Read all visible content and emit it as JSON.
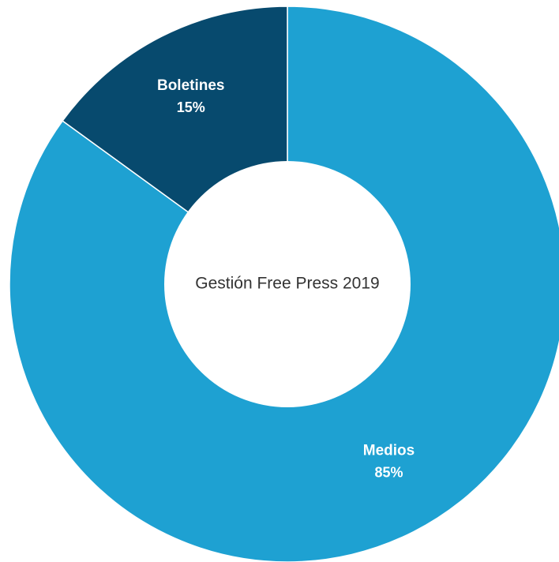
{
  "chart_data": {
    "type": "pie",
    "center_text": "Gestión Free Press 2019",
    "slices": [
      {
        "name": "Medios",
        "value": 85,
        "value_label": "85%",
        "color": "#1ea1d2"
      },
      {
        "name": "Boletines",
        "value": 15,
        "value_label": "15%",
        "color": "#074a6e"
      }
    ]
  }
}
